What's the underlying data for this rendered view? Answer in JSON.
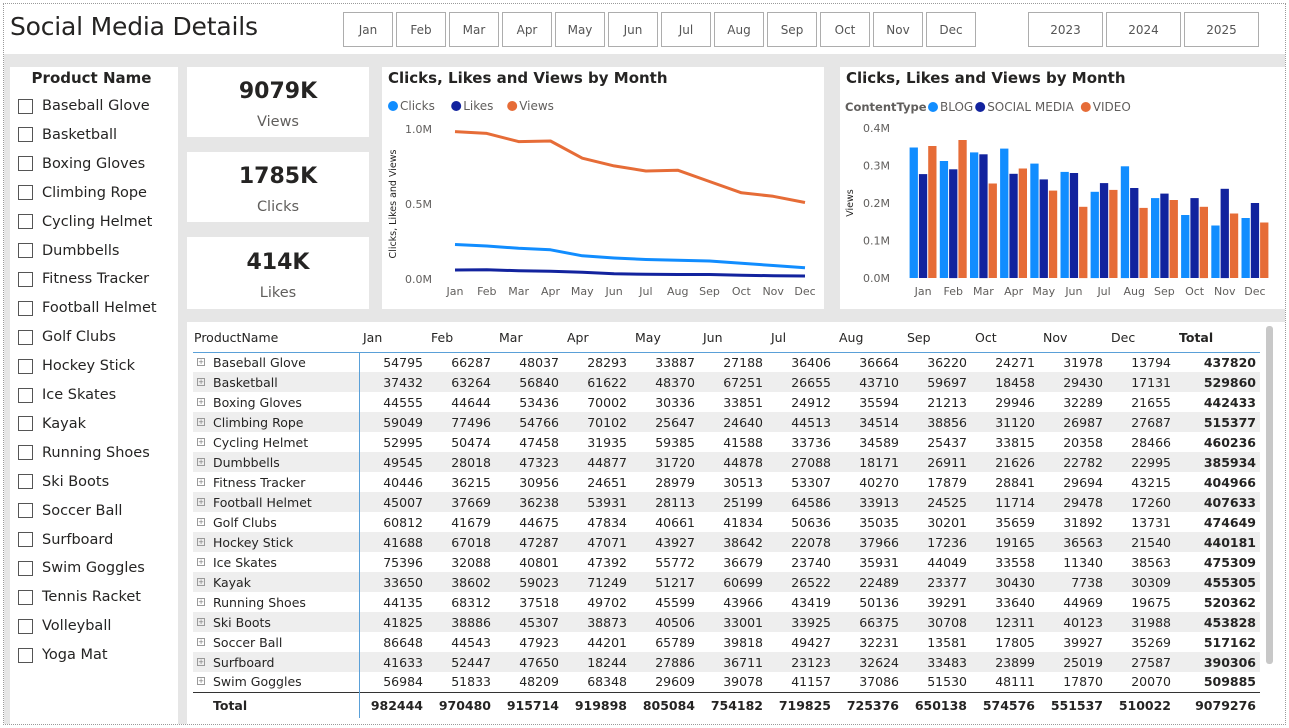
{
  "title": "Social Media Details",
  "months": [
    "Jan",
    "Feb",
    "Mar",
    "Apr",
    "May",
    "Jun",
    "Jul",
    "Aug",
    "Sep",
    "Oct",
    "Nov",
    "Dec"
  ],
  "years": [
    "2023",
    "2024",
    "2025"
  ],
  "slicer": {
    "title": "Product Name",
    "items": [
      "Baseball Glove",
      "Basketball",
      "Boxing Gloves",
      "Climbing Rope",
      "Cycling Helmet",
      "Dumbbells",
      "Fitness Tracker",
      "Football Helmet",
      "Golf Clubs",
      "Hockey Stick",
      "Ice Skates",
      "Kayak",
      "Running Shoes",
      "Ski Boots",
      "Soccer Ball",
      "Surfboard",
      "Swim Goggles",
      "Tennis Racket",
      "Volleyball",
      "Yoga Mat"
    ]
  },
  "cards": [
    {
      "value": "9079K",
      "label": "Views"
    },
    {
      "value": "1785K",
      "label": "Clicks"
    },
    {
      "value": "414K",
      "label": "Likes"
    }
  ],
  "colors": {
    "clicks": "#118DFF",
    "likes": "#12239E",
    "views": "#E66C37",
    "blog": "#118DFF",
    "social": "#12239E",
    "video": "#E66C37"
  },
  "chart_data": [
    {
      "type": "line",
      "title": "Clicks, Likes and Views by Month",
      "ylabel": "Clicks, Likes and Views",
      "xlabel": "",
      "categories": [
        "Jan",
        "Feb",
        "Mar",
        "Apr",
        "May",
        "Jun",
        "Jul",
        "Aug",
        "Sep",
        "Oct",
        "Nov",
        "Dec"
      ],
      "ylim": [
        0,
        1000000
      ],
      "ytick_labels": [
        "0.0M",
        "0.5M",
        "1.0M"
      ],
      "legend": "top-left",
      "series": [
        {
          "name": "Clicks",
          "values": [
            230000,
            220000,
            205000,
            195000,
            155000,
            140000,
            130000,
            125000,
            120000,
            105000,
            90000,
            75000
          ]
        },
        {
          "name": "Likes",
          "values": [
            60000,
            62000,
            55000,
            52000,
            45000,
            35000,
            32000,
            30000,
            30000,
            25000,
            22000,
            20000
          ]
        },
        {
          "name": "Views",
          "values": [
            982444,
            970480,
            915714,
            919898,
            805084,
            754182,
            719825,
            725376,
            650138,
            574576,
            551537,
            510022
          ]
        }
      ]
    },
    {
      "type": "bar",
      "title": "Clicks, Likes and Views by Month",
      "ylabel": "Views",
      "legend_title": "ContentType",
      "categories": [
        "Jan",
        "Feb",
        "Mar",
        "Apr",
        "May",
        "Jun",
        "Jul",
        "Aug",
        "Sep",
        "Oct",
        "Nov",
        "Dec"
      ],
      "ylim": [
        0,
        400000
      ],
      "ytick_labels": [
        "0.0M",
        "0.1M",
        "0.2M",
        "0.3M",
        "0.4M"
      ],
      "legend": "top-left",
      "series": [
        {
          "name": "BLOG",
          "values": [
            348000,
            312000,
            335000,
            345000,
            305000,
            283000,
            230000,
            298000,
            213000,
            168000,
            140000,
            160000
          ]
        },
        {
          "name": "SOCIAL MEDIA",
          "values": [
            277000,
            290000,
            330000,
            278000,
            263000,
            280000,
            253000,
            240000,
            225000,
            213000,
            238000,
            200000
          ]
        },
        {
          "name": "VIDEO",
          "values": [
            352000,
            368000,
            252000,
            292000,
            233000,
            190000,
            235000,
            187000,
            208000,
            190000,
            172000,
            148000
          ]
        }
      ]
    }
  ],
  "table": {
    "header_name": "ProductName",
    "header_total": "Total",
    "rows": [
      {
        "name": "Baseball Glove",
        "vals": [
          "54795",
          "66287",
          "48037",
          "28293",
          "33887",
          "27188",
          "36406",
          "36664",
          "36220",
          "24271",
          "31978",
          "13794"
        ],
        "total": "437820"
      },
      {
        "name": "Basketball",
        "vals": [
          "37432",
          "63264",
          "56840",
          "61622",
          "48370",
          "67251",
          "26655",
          "43710",
          "59697",
          "18458",
          "29430",
          "17131"
        ],
        "total": "529860"
      },
      {
        "name": "Boxing Gloves",
        "vals": [
          "44555",
          "44644",
          "53436",
          "70002",
          "30336",
          "33851",
          "24912",
          "35594",
          "21213",
          "29946",
          "32289",
          "21655"
        ],
        "total": "442433"
      },
      {
        "name": "Climbing Rope",
        "vals": [
          "59049",
          "77496",
          "54766",
          "70102",
          "25647",
          "24640",
          "44513",
          "34514",
          "38856",
          "31120",
          "26987",
          "27687"
        ],
        "total": "515377"
      },
      {
        "name": "Cycling Helmet",
        "vals": [
          "52995",
          "50474",
          "47458",
          "31935",
          "59385",
          "41588",
          "33736",
          "34589",
          "25437",
          "33815",
          "20358",
          "28466"
        ],
        "total": "460236"
      },
      {
        "name": "Dumbbells",
        "vals": [
          "49545",
          "28018",
          "47323",
          "44877",
          "31720",
          "44878",
          "27088",
          "18171",
          "26911",
          "21626",
          "22782",
          "22995"
        ],
        "total": "385934"
      },
      {
        "name": "Fitness Tracker",
        "vals": [
          "40446",
          "36215",
          "30956",
          "24651",
          "28979",
          "30513",
          "53307",
          "40270",
          "17879",
          "28841",
          "29694",
          "43215"
        ],
        "total": "404966"
      },
      {
        "name": "Football Helmet",
        "vals": [
          "45007",
          "37669",
          "36238",
          "53931",
          "28113",
          "25199",
          "64586",
          "33913",
          "24525",
          "11714",
          "29478",
          "17260"
        ],
        "total": "407633"
      },
      {
        "name": "Golf Clubs",
        "vals": [
          "60812",
          "41679",
          "44675",
          "47834",
          "40661",
          "41834",
          "50636",
          "35035",
          "30201",
          "35659",
          "31892",
          "13731"
        ],
        "total": "474649"
      },
      {
        "name": "Hockey Stick",
        "vals": [
          "41688",
          "67018",
          "47287",
          "47071",
          "43927",
          "38642",
          "22078",
          "37966",
          "17236",
          "19165",
          "36563",
          "21540"
        ],
        "total": "440181"
      },
      {
        "name": "Ice Skates",
        "vals": [
          "75396",
          "32088",
          "40801",
          "47392",
          "55772",
          "36679",
          "23740",
          "35931",
          "44049",
          "33558",
          "11340",
          "38563"
        ],
        "total": "475309"
      },
      {
        "name": "Kayak",
        "vals": [
          "33650",
          "38602",
          "59023",
          "71249",
          "51217",
          "60699",
          "26522",
          "22489",
          "23377",
          "30430",
          "7738",
          "30309"
        ],
        "total": "455305"
      },
      {
        "name": "Running Shoes",
        "vals": [
          "44135",
          "68312",
          "37518",
          "49702",
          "45599",
          "43966",
          "43419",
          "50136",
          "39291",
          "33640",
          "44969",
          "19675"
        ],
        "total": "520362"
      },
      {
        "name": "Ski Boots",
        "vals": [
          "41825",
          "38886",
          "45307",
          "38873",
          "40506",
          "33001",
          "33925",
          "66375",
          "30708",
          "12311",
          "40123",
          "31988"
        ],
        "total": "453828"
      },
      {
        "name": "Soccer Ball",
        "vals": [
          "86648",
          "44543",
          "47923",
          "44201",
          "65789",
          "39818",
          "49427",
          "32231",
          "13581",
          "17805",
          "39927",
          "35269"
        ],
        "total": "517162"
      },
      {
        "name": "Surfboard",
        "vals": [
          "41633",
          "52447",
          "47650",
          "18244",
          "27886",
          "36711",
          "23123",
          "32624",
          "33483",
          "23899",
          "25019",
          "27587"
        ],
        "total": "390306"
      },
      {
        "name": "Swim Goggles",
        "vals": [
          "56984",
          "51833",
          "48209",
          "68348",
          "29609",
          "39078",
          "41157",
          "37086",
          "51530",
          "48111",
          "17870",
          "20070"
        ],
        "total": "509885"
      }
    ],
    "footer": {
      "label": "Total",
      "vals": [
        "982444",
        "970480",
        "915714",
        "919898",
        "805084",
        "754182",
        "719825",
        "725376",
        "650138",
        "574576",
        "551537",
        "510022"
      ],
      "total": "9079276"
    }
  }
}
